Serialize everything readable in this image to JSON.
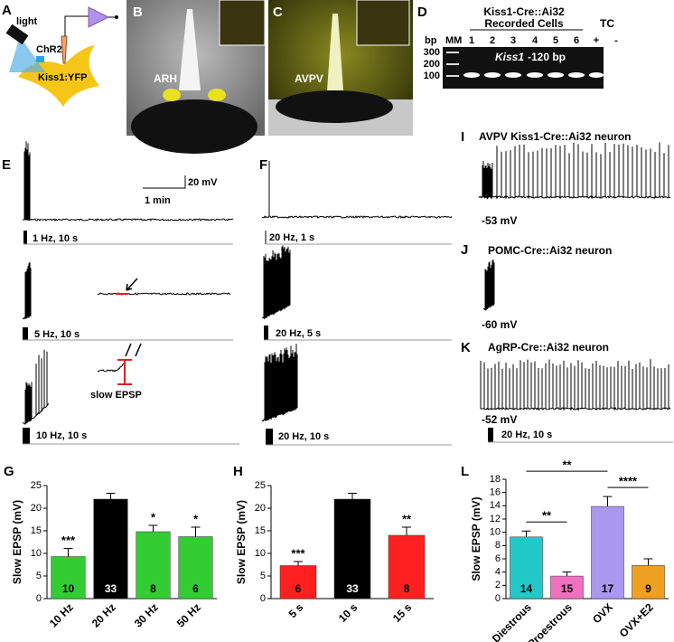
{
  "panels": [
    "A",
    "B",
    "C",
    "D",
    "E",
    "F",
    "G",
    "H",
    "I",
    "J",
    "K",
    "L"
  ],
  "schematic": {
    "light": "light",
    "channel": "ChR2",
    "cell": "Kiss1:YFP"
  },
  "images": {
    "B": "ARH",
    "C": "AVPV"
  },
  "gel": {
    "title": "Kiss1-Cre::Ai32",
    "subtitle": "Recorded Cells",
    "control": "TC",
    "bp_label": "bp",
    "marker": "MM",
    "lanes": [
      1,
      2,
      3,
      4,
      5,
      6,
      "+",
      "-"
    ],
    "sizes": [
      300,
      200,
      100
    ],
    "band_gene": "Kiss1",
    "band_size": "-120 bp"
  },
  "traces_E": {
    "scale_time": "1 min",
    "scale_voltage": "20 mV",
    "stims": [
      "1 Hz, 10 s",
      "5 Hz, 10 s",
      "10 Hz, 10 s"
    ],
    "annotation": "slow EPSP"
  },
  "traces_F": {
    "stims": [
      "20 Hz, 1 s",
      "20 Hz, 5 s",
      "20 Hz, 10 s"
    ]
  },
  "traces_IJK": {
    "titles": [
      "AVPV Kiss1-Cre::Ai32 neuron",
      "POMC-Cre::Ai32  neuron",
      "AgRP-Cre::Ai32  neuron"
    ],
    "potentials": [
      "-53 mV",
      "-60 mV",
      "-52 mV"
    ],
    "stim": "20 Hz, 10 s"
  },
  "chart_data": [
    {
      "type": "bar",
      "ylabel": "Slow EPSP (mV)",
      "categories": [
        "10 Hz",
        "20 Hz",
        "30 Hz",
        "50 Hz"
      ],
      "values": [
        9.3,
        22,
        14.8,
        13.7
      ],
      "errors": [
        1.8,
        1.3,
        1.4,
        2.1
      ],
      "colors": [
        "#33cc33",
        "#000000",
        "#33cc33",
        "#33cc33"
      ],
      "n": [
        10,
        33,
        8,
        6
      ],
      "significance": [
        "***",
        null,
        "*",
        "*"
      ],
      "ylim": [
        0,
        25
      ],
      "yticks": [
        0,
        5,
        10,
        15,
        20,
        25
      ]
    },
    {
      "type": "bar",
      "ylabel": "Slow EPSP (mV)",
      "categories": [
        "5 s",
        "10 s",
        "15 s"
      ],
      "values": [
        7.3,
        22,
        14
      ],
      "errors": [
        0.9,
        1.3,
        1.8
      ],
      "colors": [
        "#ff2020",
        "#000000",
        "#ff2020"
      ],
      "n": [
        6,
        33,
        8
      ],
      "significance": [
        "***",
        null,
        "**"
      ],
      "ylim": [
        0,
        25
      ],
      "yticks": [
        0,
        5,
        10,
        15,
        20,
        25
      ]
    },
    {
      "type": "bar",
      "ylabel": "Slow EPSP (mV)",
      "categories": [
        "Diestrous",
        "Proestrous",
        "OVX",
        "OVX+E2"
      ],
      "values": [
        9.3,
        3.4,
        13.9,
        5.0
      ],
      "errors": [
        0.9,
        0.6,
        1.5,
        1.0
      ],
      "colors": [
        "#22c8c8",
        "#f070c0",
        "#a898f0",
        "#f0a020"
      ],
      "n": [
        14,
        15,
        17,
        9
      ],
      "ylim": [
        0,
        18
      ],
      "yticks": [
        0,
        2,
        4,
        6,
        8,
        10,
        12,
        14,
        16,
        18
      ],
      "brackets": [
        {
          "between": [
            "Diestrous",
            "Proestrous"
          ],
          "label": "**"
        },
        {
          "between": [
            "Diestrous",
            "OVX"
          ],
          "label": "**"
        },
        {
          "between": [
            "OVX",
            "OVX+E2"
          ],
          "label": "****"
        }
      ]
    }
  ]
}
